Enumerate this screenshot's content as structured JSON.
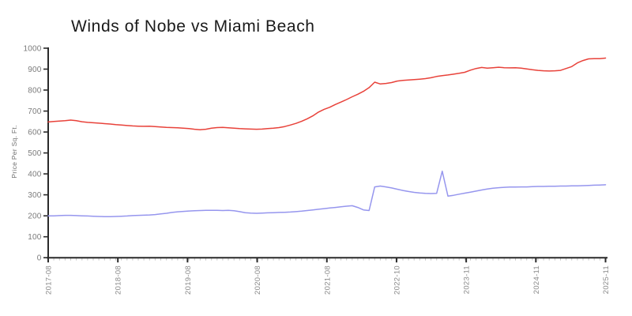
{
  "title": "Winds of Nobe vs Miami Beach",
  "colors": {
    "background": "#ffffff",
    "axis": "#2a2a2a",
    "minor_tick": "#c8c8c8",
    "x_tick_label": "#8a8a8a",
    "y_tick_label": "#7a7a7a",
    "red_line": "#e8423a",
    "blue_line": "#9696ee"
  },
  "chart_data": {
    "type": "line",
    "title": "Winds of Nobe vs Miami Beach",
    "xlabel": "",
    "ylabel": "Price Per Sq. Ft.",
    "ylim": [
      0,
      1000
    ],
    "y_ticks": [
      0,
      100,
      200,
      300,
      400,
      500,
      600,
      700,
      800,
      900,
      1000
    ],
    "x_tick_labels": [
      "2017-08",
      "2018-08",
      "2019-08",
      "2020-08",
      "2021-08",
      "2022-10",
      "2023-11",
      "2024-11",
      "2025-11"
    ],
    "grid": false,
    "legend": "none",
    "x": [
      "2017-08",
      "2017-09",
      "2017-10",
      "2017-11",
      "2017-12",
      "2018-01",
      "2018-02",
      "2018-03",
      "2018-04",
      "2018-05",
      "2018-06",
      "2018-07",
      "2018-08",
      "2018-09",
      "2018-10",
      "2018-11",
      "2018-12",
      "2019-01",
      "2019-02",
      "2019-03",
      "2019-04",
      "2019-05",
      "2019-06",
      "2019-07",
      "2019-08",
      "2019-09",
      "2019-10",
      "2019-11",
      "2019-12",
      "2020-01",
      "2020-02",
      "2020-03",
      "2020-04",
      "2020-05",
      "2020-06",
      "2020-07",
      "2020-08",
      "2020-09",
      "2020-10",
      "2020-11",
      "2020-12",
      "2021-01",
      "2021-02",
      "2021-03",
      "2021-04",
      "2021-05",
      "2021-06",
      "2021-07",
      "2021-08",
      "2021-09",
      "2021-10",
      "2021-11",
      "2021-12",
      "2022-01",
      "2022-02",
      "2022-03",
      "2022-04",
      "2022-05",
      "2022-06",
      "2022-07",
      "2022-08",
      "2022-09",
      "2022-10",
      "2022-11",
      "2022-12",
      "2023-01",
      "2023-02",
      "2023-03",
      "2023-04",
      "2023-05",
      "2023-06",
      "2023-07",
      "2023-08",
      "2023-09",
      "2023-10",
      "2023-11",
      "2023-12",
      "2024-01",
      "2024-02",
      "2024-03",
      "2024-04",
      "2024-05",
      "2024-06",
      "2024-07",
      "2024-08",
      "2024-09",
      "2024-10",
      "2024-11",
      "2024-12",
      "2025-01",
      "2025-02",
      "2025-03",
      "2025-04",
      "2025-05",
      "2025-06",
      "2025-07",
      "2025-08",
      "2025-09",
      "2025-10",
      "2025-11"
    ],
    "series": [
      {
        "name": "red-series",
        "color": "#e8423a",
        "values": [
          648,
          650,
          652,
          654,
          657,
          654,
          649,
          646,
          644,
          642,
          640,
          638,
          635,
          633,
          631,
          629,
          628,
          627,
          628,
          626,
          624,
          622,
          621,
          620,
          618,
          616,
          613,
          611,
          613,
          618,
          621,
          622,
          620,
          618,
          616,
          615,
          614,
          613,
          614,
          616,
          618,
          621,
          626,
          633,
          641,
          651,
          663,
          677,
          695,
          708,
          718,
          731,
          743,
          755,
          768,
          780,
          794,
          812,
          838,
          829,
          832,
          836,
          843,
          846,
          848,
          850,
          852,
          855,
          859,
          865,
          869,
          872,
          876,
          880,
          885,
          895,
          903,
          908,
          905,
          907,
          909,
          907,
          906,
          907,
          905,
          901,
          897,
          894,
          892,
          891,
          892,
          894,
          903,
          912,
          930,
          941,
          949,
          950,
          950,
          953
        ]
      },
      {
        "name": "blue-series",
        "color": "#9696ee",
        "values": [
          200,
          200,
          201,
          202,
          202,
          201,
          200,
          199,
          198,
          197,
          196,
          196,
          197,
          198,
          199,
          201,
          202,
          203,
          204,
          206,
          209,
          212,
          216,
          219,
          221,
          223,
          224,
          225,
          226,
          226,
          226,
          225,
          226,
          224,
          220,
          215,
          213,
          212,
          213,
          214,
          215,
          216,
          217,
          218,
          220,
          222,
          225,
          228,
          231,
          234,
          237,
          240,
          243,
          246,
          248,
          240,
          228,
          225,
          338,
          342,
          338,
          333,
          327,
          321,
          316,
          312,
          309,
          307,
          306,
          307,
          413,
          294,
          298,
          303,
          308,
          313,
          318,
          323,
          328,
          332,
          334,
          336,
          337,
          337,
          338,
          338,
          339,
          340,
          340,
          341,
          341,
          342,
          342,
          343,
          343,
          344,
          345,
          346,
          347,
          348
        ]
      }
    ]
  }
}
